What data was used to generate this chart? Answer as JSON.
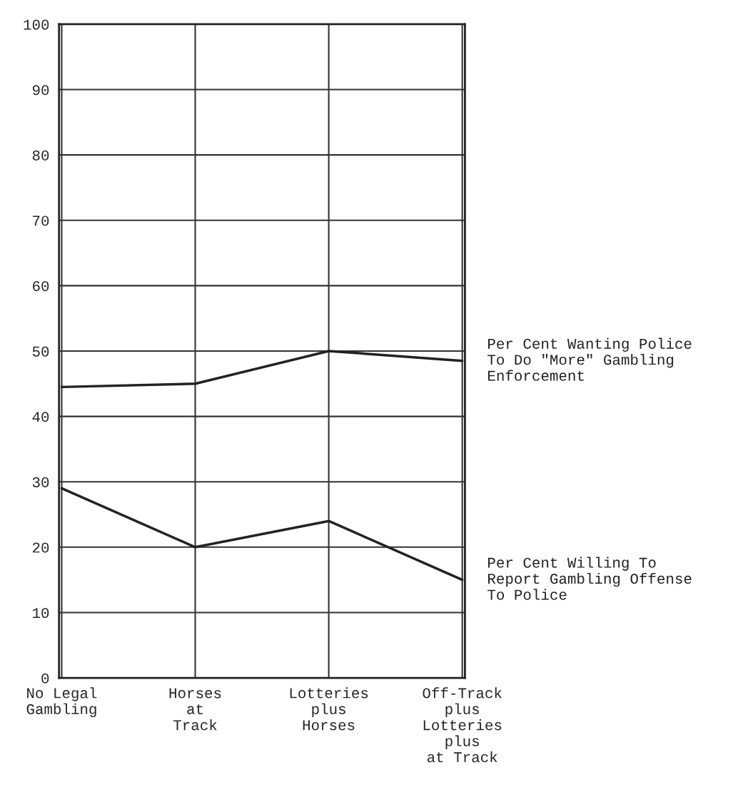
{
  "chart_data": {
    "type": "line",
    "categories": [
      "No Legal\nGambling",
      "Horses\nat\nTrack",
      "Lotteries\nplus\nHorses",
      "Off-Track\nplus\nLotteries\nplus\nat Track"
    ],
    "series": [
      {
        "name": "Per Cent Wanting Police\nTo Do \"More\" Gambling\nEnforcement",
        "color": "#222222",
        "values": [
          44.5,
          45,
          50,
          48.5
        ]
      },
      {
        "name": "Per Cent Willing To\nReport Gambling Offense\nTo Police",
        "color": "#222222",
        "values": [
          29,
          20,
          24,
          15
        ]
      }
    ],
    "ylim": [
      0,
      100
    ],
    "yticks": [
      0,
      10,
      20,
      30,
      40,
      50,
      60,
      70,
      80,
      90,
      100
    ],
    "grid": true,
    "marker": "none",
    "line_style": "solid"
  }
}
